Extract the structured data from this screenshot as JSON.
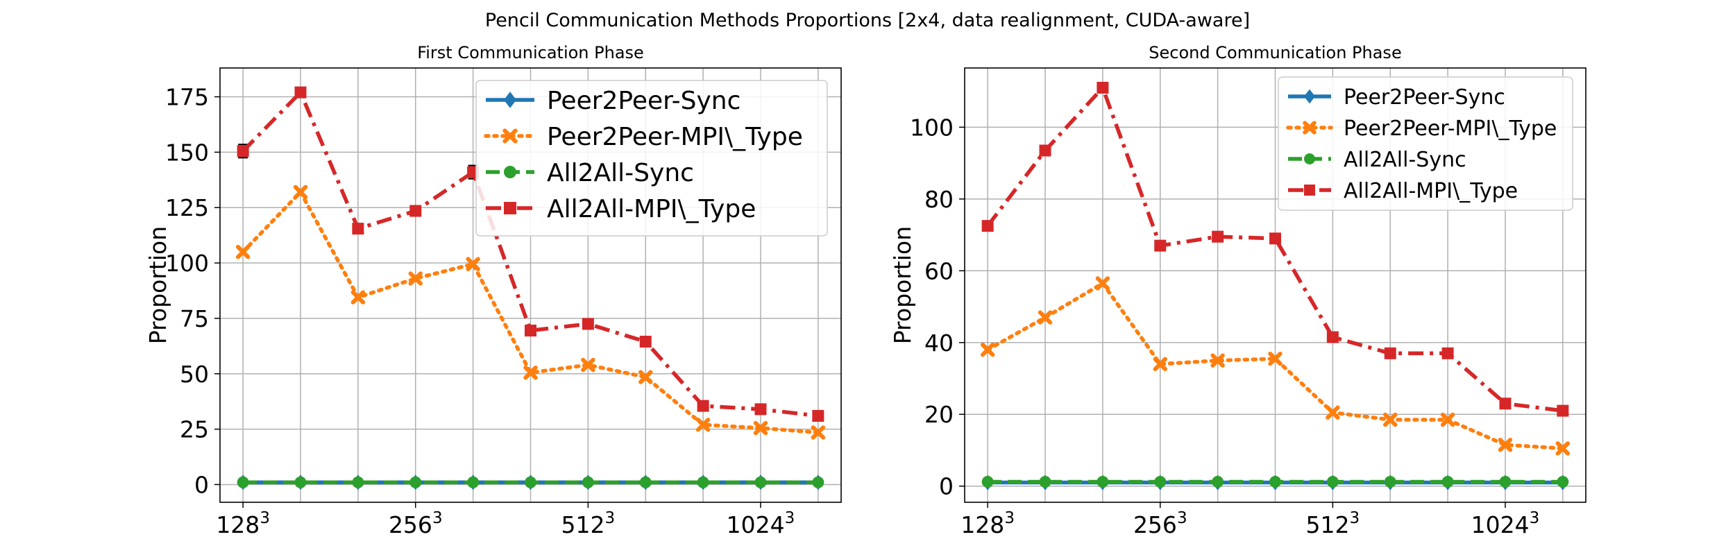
{
  "figure": {
    "title": "Pencil Communication Methods Proportions [2x4, data realignment, CUDA-aware]"
  },
  "colors": {
    "Peer2Peer-Sync": "#1f77b4",
    "Peer2Peer-MPI\\_Type": "#ff7f0e",
    "All2All-Sync": "#2ca02c",
    "All2All-MPI\\_Type": "#d62728"
  },
  "chart_data": [
    {
      "type": "line",
      "title": "First Communication Phase",
      "xlabel": "",
      "ylabel": "Proportion",
      "x": [
        0,
        1,
        2,
        3,
        4,
        5,
        6,
        7,
        8,
        9,
        10
      ],
      "xticks": [
        0,
        3,
        6,
        9
      ],
      "xtick_labels": [
        {
          "base": "128",
          "exp": "3"
        },
        {
          "base": "256",
          "exp": "3"
        },
        {
          "base": "512",
          "exp": "3"
        },
        {
          "base": "1024",
          "exp": "3"
        }
      ],
      "ylim": [
        -8,
        188
      ],
      "yticks": [
        0,
        25,
        50,
        75,
        100,
        125,
        150,
        175
      ],
      "grid": true,
      "legend_position": "upper-right",
      "series": [
        {
          "name": "Peer2Peer-Sync",
          "marker": "diamond",
          "linestyle": "solid",
          "values": [
            1,
            1,
            1,
            1,
            1,
            1,
            1,
            1,
            1,
            1,
            1
          ]
        },
        {
          "name": "Peer2Peer-MPI\\_Type",
          "marker": "x",
          "linestyle": "dotted",
          "values": [
            105,
            132,
            84.5,
            93,
            99.5,
            50.5,
            54,
            48.5,
            27,
            25.5,
            23.5
          ]
        },
        {
          "name": "All2All-Sync",
          "marker": "circle",
          "linestyle": "dashed",
          "values": [
            1,
            1,
            1,
            1,
            1,
            1,
            1,
            1,
            1,
            1,
            1
          ]
        },
        {
          "name": "All2All-MPI\\_Type",
          "marker": "square",
          "linestyle": "dashdot",
          "values": [
            150.5,
            177,
            115.5,
            123.5,
            141,
            69.5,
            72.5,
            64.5,
            35.5,
            34,
            31
          ],
          "errors": [
            3,
            0,
            0,
            0,
            3,
            0,
            0,
            0,
            0,
            0,
            0
          ]
        }
      ]
    },
    {
      "type": "line",
      "title": "Second Communication Phase",
      "xlabel": "",
      "ylabel": "Proportion",
      "x": [
        0,
        1,
        2,
        3,
        4,
        5,
        6,
        7,
        8,
        9,
        10
      ],
      "xticks": [
        0,
        3,
        6,
        9
      ],
      "xtick_labels": [
        {
          "base": "128",
          "exp": "3"
        },
        {
          "base": "256",
          "exp": "3"
        },
        {
          "base": "512",
          "exp": "3"
        },
        {
          "base": "1024",
          "exp": "3"
        }
      ],
      "ylim": [
        -4.5,
        116.5
      ],
      "yticks": [
        0,
        20,
        40,
        60,
        80,
        100
      ],
      "grid": true,
      "legend_position": "upper-right",
      "series": [
        {
          "name": "Peer2Peer-Sync",
          "marker": "diamond",
          "linestyle": "solid",
          "values": [
            1,
            1,
            1,
            1,
            1,
            1,
            1,
            1,
            1,
            1,
            1
          ]
        },
        {
          "name": "Peer2Peer-MPI\\_Type",
          "marker": "x",
          "linestyle": "dotted",
          "values": [
            38,
            47,
            56.5,
            34,
            35,
            35.5,
            20.5,
            18.5,
            18.5,
            11.5,
            10.5
          ]
        },
        {
          "name": "All2All-Sync",
          "marker": "circle",
          "linestyle": "dashed",
          "values": [
            1.2,
            1.2,
            1.2,
            1.2,
            1.2,
            1.2,
            1.2,
            1.2,
            1.2,
            1.2,
            1.2
          ]
        },
        {
          "name": "All2All-MPI\\_Type",
          "marker": "square",
          "linestyle": "dashdot",
          "values": [
            72.5,
            93.5,
            111,
            67,
            69.5,
            69,
            41.5,
            37,
            37,
            23,
            21
          ]
        }
      ]
    }
  ]
}
